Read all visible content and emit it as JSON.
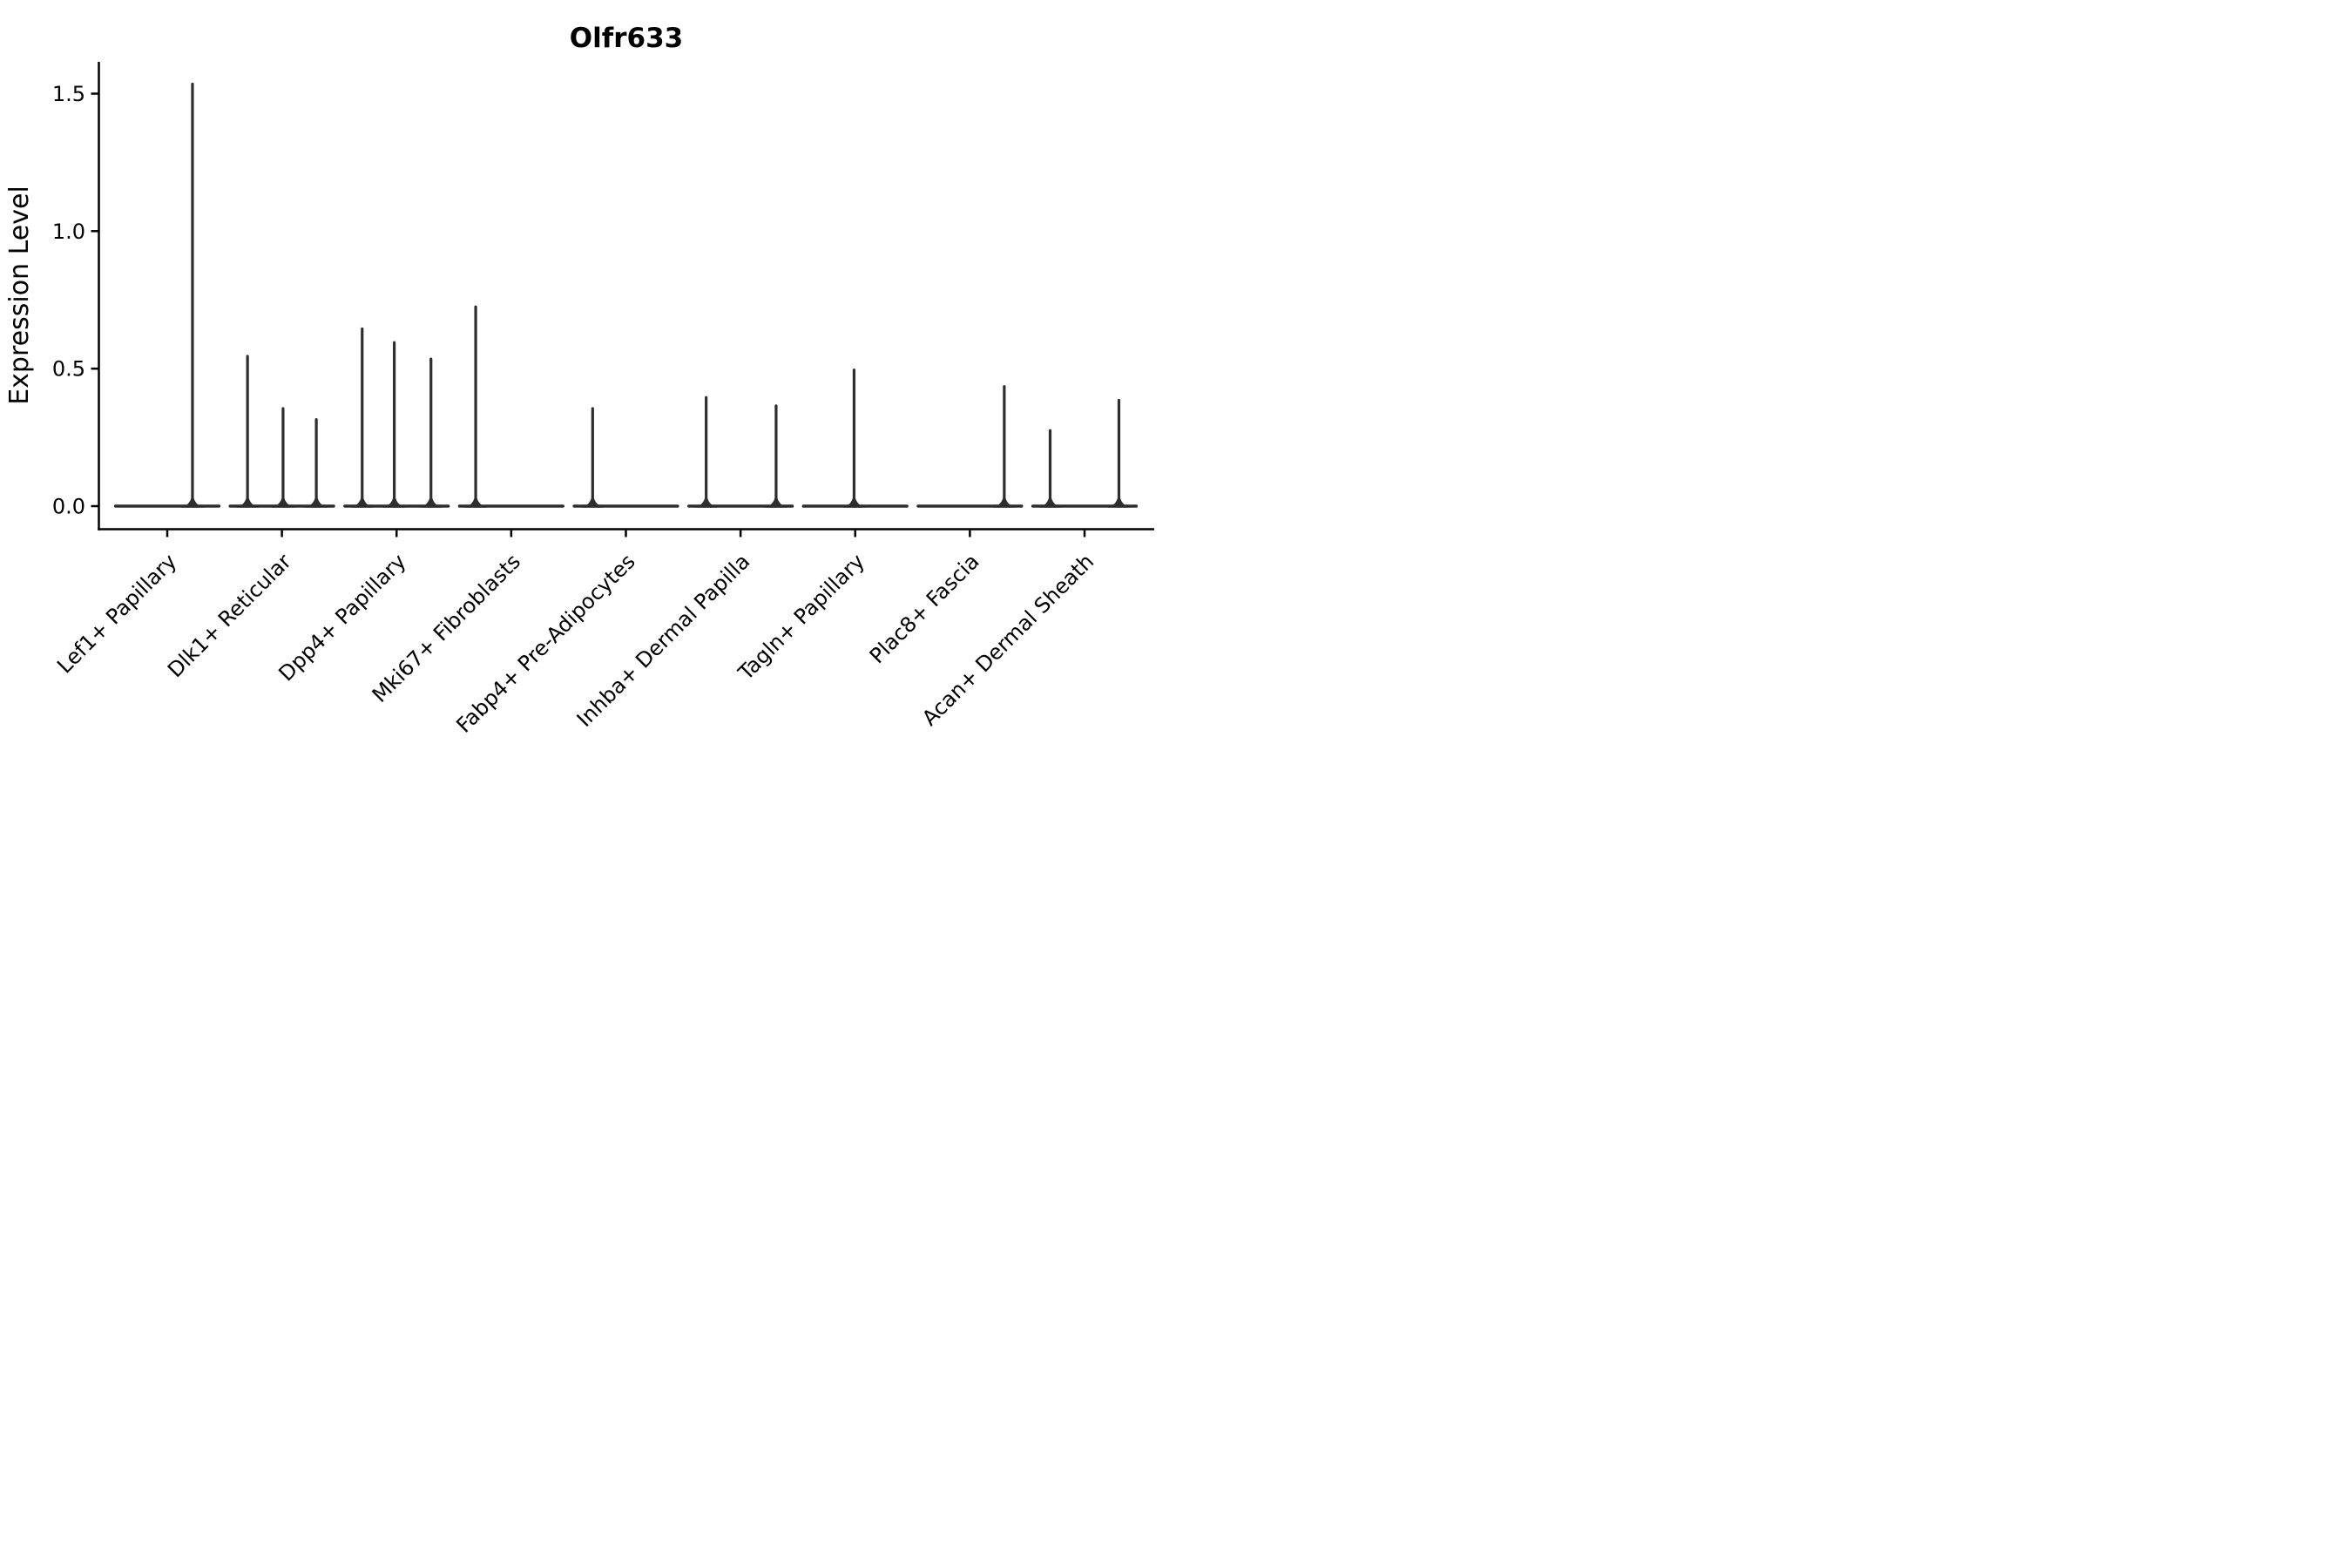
{
  "figure": {
    "title": "Olfr633",
    "background": "#ffffff"
  },
  "axes": {
    "ylabel": "Expression Level",
    "ytick_labels_top_to_bottom": [
      "1.5",
      "1.0",
      "0.5",
      "0.0"
    ],
    "axis_color": "#000000"
  },
  "chart_data": {
    "type": "violin",
    "title": "Olfr633",
    "xlabel": "",
    "ylabel": "Expression Level",
    "ylim": [
      -0.08,
      1.62
    ],
    "yticks": [
      0.0,
      0.5,
      1.0,
      1.5
    ],
    "grid": false,
    "legend": false,
    "violin_color": "#2e2e2e",
    "baseline_value": 0.0,
    "group_halfwidth_frac": 0.462,
    "categories": [
      "Lef1+ Papillary",
      "Dlk1+ Reticular",
      "Dpp4+ Papillary",
      "Mki67+ Fibroblasts",
      "Fabp4+ Pre-Adipocytes",
      "Inhba+ Dermal Papilla",
      "Tagln+ Papillary",
      "Plac8+ Fascia",
      "Acan+ Dermal Sheath"
    ],
    "groups": [
      {
        "category": "Lef1+ Papillary",
        "violins": [
          {
            "dx": 0.22,
            "max": 1.54
          }
        ]
      },
      {
        "category": "Dlk1+ Reticular",
        "violins": [
          {
            "dx": -0.3,
            "max": 0.55
          },
          {
            "dx": 0.01,
            "max": 0.36
          },
          {
            "dx": 0.3,
            "max": 0.32
          }
        ]
      },
      {
        "category": "Dpp4+ Papillary",
        "violins": [
          {
            "dx": -0.3,
            "max": 0.65
          },
          {
            "dx": -0.02,
            "max": 0.6
          },
          {
            "dx": 0.3,
            "max": 0.54
          }
        ]
      },
      {
        "category": "Mki67+ Fibroblasts",
        "violins": [
          {
            "dx": -0.31,
            "max": 0.73
          }
        ]
      },
      {
        "category": "Fabp4+ Pre-Adipocytes",
        "violins": [
          {
            "dx": -0.29,
            "max": 0.36
          }
        ]
      },
      {
        "category": "Inhba+ Dermal Papilla",
        "violins": [
          {
            "dx": -0.3,
            "max": 0.4
          },
          {
            "dx": 0.31,
            "max": 0.37
          }
        ]
      },
      {
        "category": "Tagln+ Papillary",
        "violins": [
          {
            "dx": -0.01,
            "max": 0.5
          }
        ]
      },
      {
        "category": "Plac8+ Fascia",
        "violins": [
          {
            "dx": 0.3,
            "max": 0.44
          }
        ]
      },
      {
        "category": "Acan+ Dermal Sheath",
        "violins": [
          {
            "dx": -0.3,
            "max": 0.28
          },
          {
            "dx": 0.3,
            "max": 0.39
          }
        ]
      }
    ]
  }
}
